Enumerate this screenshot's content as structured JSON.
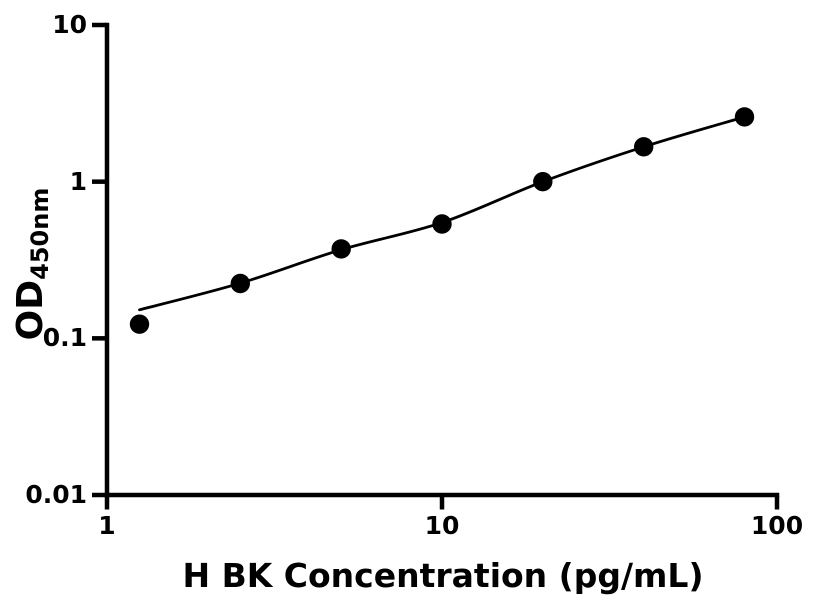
{
  "figure": {
    "background_color": "#ffffff",
    "ink_color": "#000000"
  },
  "chart_data": {
    "type": "scatter",
    "title": "",
    "xlabel": "H BK Concentration (pg/mL)",
    "ylabel": "OD",
    "ylabel_subscript": "450nm",
    "x_scale": "log",
    "y_scale": "log",
    "xlim": [
      1,
      100
    ],
    "ylim": [
      0.01,
      10
    ],
    "x_ticks": [
      1,
      10,
      100
    ],
    "x_tick_labels": [
      "1",
      "10",
      "100"
    ],
    "y_ticks": [
      10,
      1,
      0.1,
      0.01
    ],
    "y_tick_labels": [
      "10",
      "1",
      "0.1",
      "0.01"
    ],
    "grid": false,
    "legend": null,
    "marker_color": "#000000",
    "line_color": "#000000",
    "series": [
      {
        "name": "standard-points",
        "type": "scatter",
        "marker": "filled-circle",
        "points": [
          {
            "x": 1.25,
            "y": 0.123
          },
          {
            "x": 2.5,
            "y": 0.224
          },
          {
            "x": 5,
            "y": 0.372
          },
          {
            "x": 10,
            "y": 0.537
          },
          {
            "x": 20,
            "y": 1.0
          },
          {
            "x": 40,
            "y": 1.67
          },
          {
            "x": 80,
            "y": 2.59
          }
        ]
      },
      {
        "name": "fit-curve",
        "type": "line",
        "points": [
          {
            "x": 1.25,
            "y": 0.152
          },
          {
            "x": 2.5,
            "y": 0.225
          },
          {
            "x": 5,
            "y": 0.368
          },
          {
            "x": 10,
            "y": 0.548
          },
          {
            "x": 20,
            "y": 1.0
          },
          {
            "x": 40,
            "y": 1.67
          },
          {
            "x": 80,
            "y": 2.59
          }
        ]
      }
    ]
  }
}
